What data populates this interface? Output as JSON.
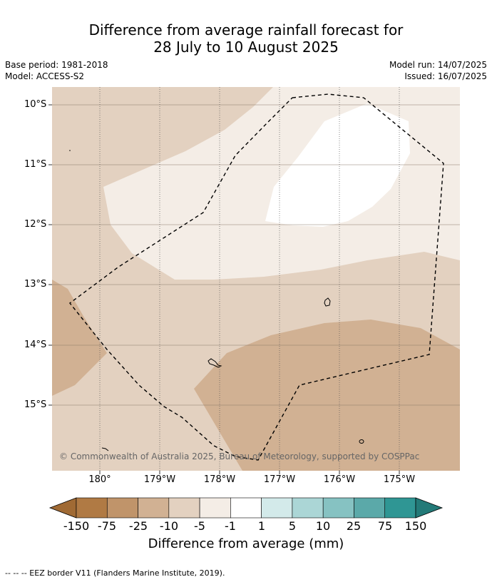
{
  "header": {
    "title_line1": "Difference from average rainfall forecast for",
    "title_line2": "28 July to 10 August 2025",
    "base_period": "Base period: 1981-2018",
    "model": "Model: ACCESS-S2",
    "model_run": "Model run: 14/07/2025",
    "issued": "Issued: 16/07/2025"
  },
  "map": {
    "lat_labels": [
      "10°S",
      "11°S",
      "12°S",
      "13°S",
      "14°S",
      "15°S"
    ],
    "lon_labels": [
      "180°",
      "179°W",
      "178°W",
      "177°W",
      "176°W",
      "175°W"
    ],
    "copyright": "© Commonwealth of Australia 2025, Bureau of Meteorology, supported by COSPPac",
    "colors": {
      "class_minus25_minus10": "#d1b193",
      "class_minus10_minus5": "#e3d1c0",
      "class_minus5_minus1": "#f4ede6",
      "class_minus1_1": "#ffffff"
    }
  },
  "colorbar": {
    "labels": [
      "-150",
      "-75",
      "-25",
      "-10",
      "-5",
      "-1",
      "1",
      "5",
      "10",
      "25",
      "75",
      "150"
    ],
    "colors": [
      "#a06a34",
      "#b07a44",
      "#c0946a",
      "#d1b193",
      "#e3d1c0",
      "#f4ede6",
      "#ffffff",
      "#d3eaea",
      "#abd6d6",
      "#86c2c2",
      "#5ba9a9",
      "#2f9694",
      "#237a78"
    ],
    "title": "Difference from average (mm)"
  },
  "footnote": "-- -- -- EEZ border V11 (Flanders Marine Institute, 2019)."
}
